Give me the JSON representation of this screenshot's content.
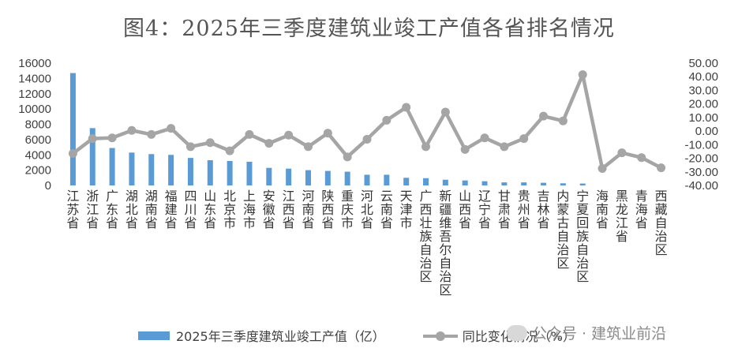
{
  "chart_data": {
    "type": "bar+line",
    "title": "图4：2025年三季度建筑业竣工产值各省排名情况",
    "categories": [
      "江苏省",
      "浙江省",
      "广东省",
      "湖北省",
      "湖南省",
      "福建省",
      "四川省",
      "山东省",
      "北京市",
      "上海市",
      "安徽省",
      "江西省",
      "河南省",
      "陕西省",
      "重庆市",
      "河北省",
      "云南省",
      "天津市",
      "广西壮族自治区",
      "新疆维吾尔自治区",
      "山西省",
      "辽宁省",
      "甘肃省",
      "贵州省",
      "吉林省",
      "内蒙古自治区",
      "宁夏回族自治区",
      "海南省",
      "黑龙江省",
      "青海省",
      "西藏自治区"
    ],
    "series": [
      {
        "name": "2025年三季度建筑业竣工产值（亿）",
        "type": "bar",
        "axis": "left",
        "values": [
          14700,
          7500,
          4900,
          4300,
          4100,
          4000,
          3600,
          3300,
          3200,
          3100,
          2300,
          2200,
          2000,
          1900,
          1800,
          1400,
          1400,
          1000,
          950,
          750,
          650,
          550,
          400,
          400,
          350,
          280,
          250,
          null,
          null,
          null,
          null
        ]
      },
      {
        "name": "同比变化情况（%）",
        "type": "line",
        "axis": "right",
        "values": [
          -16.5,
          -5.5,
          -5,
          0.5,
          -2.5,
          2,
          -11.5,
          -8.5,
          -14.5,
          -2.5,
          -9,
          -3,
          -11.5,
          -1.5,
          -19,
          -6,
          8,
          17.5,
          -11.5,
          14,
          -13.5,
          -5,
          -11.5,
          -5.5,
          11,
          7.5,
          41.5,
          -27.5,
          -16,
          -19.5,
          -27
        ]
      }
    ],
    "left_axis": {
      "min": 0,
      "max": 16000,
      "ticks": [
        "0",
        "2000",
        "4000",
        "6000",
        "8000",
        "10000",
        "12000",
        "14000",
        "16000"
      ]
    },
    "right_axis": {
      "min": -40,
      "max": 50,
      "ticks": [
        "-40.00",
        "-30.00",
        "-20.00",
        "-10.00",
        "0.00",
        "10.00",
        "20.00",
        "30.00",
        "40.00",
        "50.00"
      ]
    },
    "grid": false,
    "legend": "bottom"
  },
  "watermark": {
    "text": "公众号 · 建筑业前沿",
    "icon": "wechat-icon"
  },
  "colors": {
    "bar": "#5b9bd5",
    "line": "#a5a5a5"
  }
}
